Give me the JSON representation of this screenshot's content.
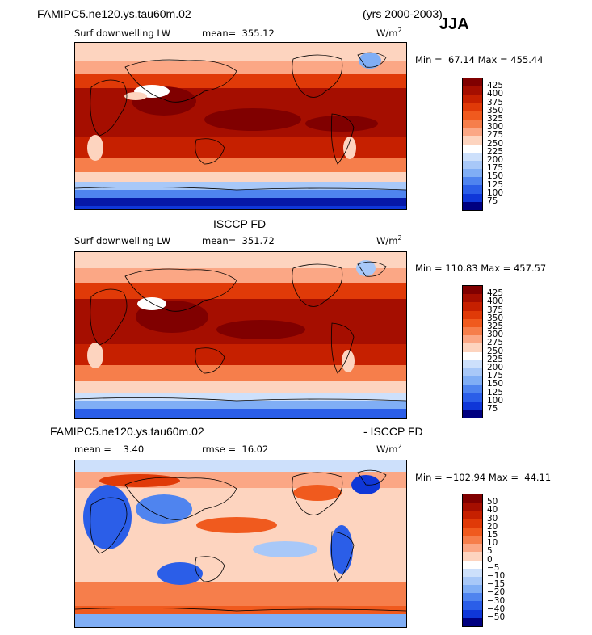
{
  "header": {
    "model_title": "FAMIPC5.ne120.ys.tau60m.02",
    "years": "(yrs 2000-2003)",
    "season": "JJA"
  },
  "panels": [
    {
      "title_left": "Surf downwelling LW",
      "mean_text": "mean=  355.12",
      "units_base": "W/m",
      "units_exp": "2",
      "minmax_text": "Min =  67.14 Max = 455.44",
      "colorbar_labels": [
        "425",
        "400",
        "375",
        "350",
        "325",
        "300",
        "275",
        "250",
        "225",
        "200",
        "175",
        "150",
        "125",
        "100",
        "75"
      ]
    },
    {
      "top_title": "ISCCP FD",
      "title_left": "Surf downwelling LW",
      "mean_text": "mean=  351.72",
      "units_base": "W/m",
      "units_exp": "2",
      "minmax_text": "Min = 110.83 Max = 457.57",
      "colorbar_labels": [
        "425",
        "400",
        "375",
        "350",
        "325",
        "300",
        "275",
        "250",
        "225",
        "200",
        "175",
        "150",
        "125",
        "100",
        "75"
      ]
    },
    {
      "top_left": "FAMIPC5.ne120.ys.tau60m.02",
      "top_right": "- ISCCP FD",
      "mean_text": "mean =    3.40",
      "rmse_text": "rmse =  16.02",
      "units_base": "W/m",
      "units_exp": "2",
      "minmax_text": "Min = −102.94 Max =  44.11",
      "colorbar_labels": [
        "50",
        "40",
        "30",
        "20",
        "15",
        "10",
        "5",
        "0",
        "−5",
        "−10",
        "−15",
        "−20",
        "−30",
        "−40",
        "−50"
      ]
    }
  ],
  "colors": {
    "scale": [
      "#800000",
      "#a50e00",
      "#c62000",
      "#e03a08",
      "#f05a1e",
      "#f67e4b",
      "#fba785",
      "#fdd4bf",
      "#ffffff",
      "#cde0fb",
      "#a8c8f8",
      "#80aef5",
      "#4f84ef",
      "#2b5ee8",
      "#0f37d8",
      "#000080"
    ]
  }
}
